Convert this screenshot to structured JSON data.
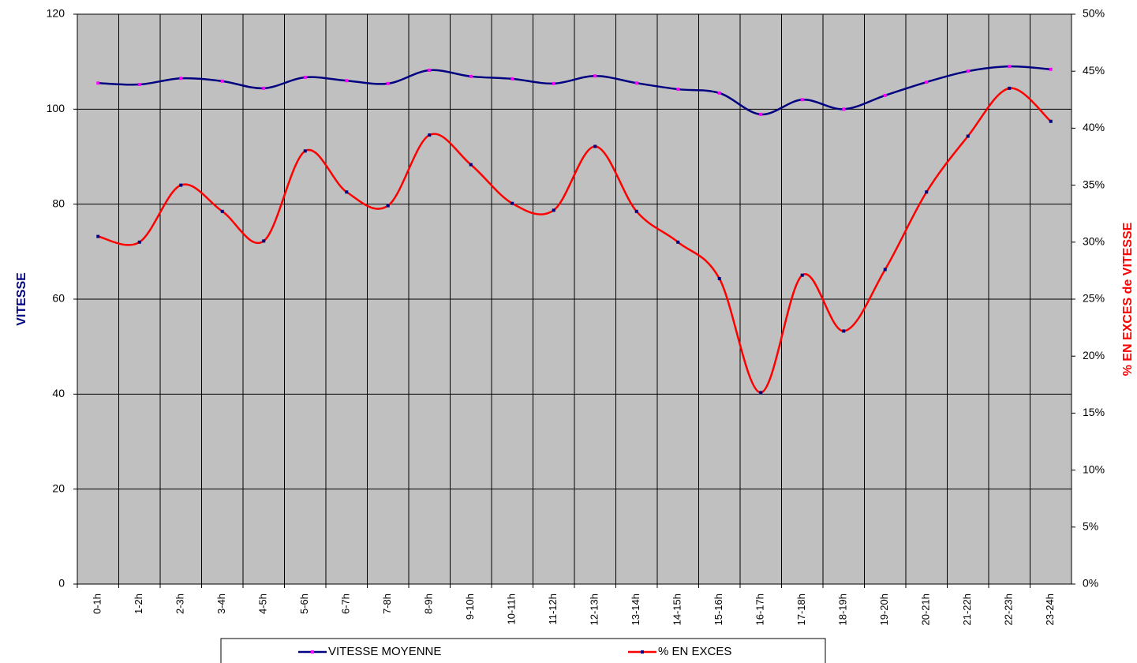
{
  "chart_data": {
    "type": "line",
    "categories": [
      "0-1h",
      "1-2h",
      "2-3h",
      "3-4h",
      "4-5h",
      "5-6h",
      "6-7h",
      "7-8h",
      "8-9h",
      "9-10h",
      "10-11h",
      "11-12h",
      "12-13h",
      "13-14h",
      "14-15h",
      "15-16h",
      "16-17h",
      "17-18h",
      "18-19h",
      "19-20h",
      "20-21h",
      "21-22h",
      "22-23h",
      "23-24h"
    ],
    "ylabel": "VITESSE",
    "y2label": "% EN EXCES de VITESSE",
    "ylim": [
      0,
      120
    ],
    "yticks": [
      0,
      20,
      40,
      60,
      80,
      100,
      120
    ],
    "y2lim": [
      0,
      50
    ],
    "y2ticks": [
      {
        "value": 0,
        "label": "0%"
      },
      {
        "value": 5,
        "label": "5%"
      },
      {
        "value": 10,
        "label": "10%"
      },
      {
        "value": 15,
        "label": "15%"
      },
      {
        "value": 20,
        "label": "20%"
      },
      {
        "value": 25,
        "label": "25%"
      },
      {
        "value": 30,
        "label": "30%"
      },
      {
        "value": 35,
        "label": "35%"
      },
      {
        "value": 40,
        "label": "40%"
      },
      {
        "value": 45,
        "label": "45%"
      },
      {
        "value": 50,
        "label": "50%"
      }
    ],
    "grid": true,
    "legend": "bottom",
    "series": [
      {
        "name": "VITESSE MOYENNE",
        "color": "#000080",
        "marker_color": "#ff00ff",
        "values": [
          105.5,
          105.2,
          106.5,
          105.9,
          104.4,
          106.7,
          106.0,
          105.4,
          108.2,
          106.9,
          106.4,
          105.4,
          107.0,
          105.5,
          104.2,
          103.4,
          98.9,
          102.0,
          100.0,
          102.9,
          105.7,
          108.0,
          109.0,
          108.4
        ]
      },
      {
        "name": "% EN EXCES",
        "color": "#ff0000",
        "marker_color": "#000080",
        "axis": "y2",
        "values": [
          30.5,
          30.0,
          35.0,
          32.7,
          30.1,
          38.0,
          34.4,
          33.2,
          39.4,
          36.8,
          33.4,
          32.8,
          38.4,
          32.7,
          30.0,
          26.8,
          16.8,
          27.1,
          22.2,
          27.6,
          34.4,
          39.3,
          43.5,
          40.6
        ]
      }
    ]
  }
}
